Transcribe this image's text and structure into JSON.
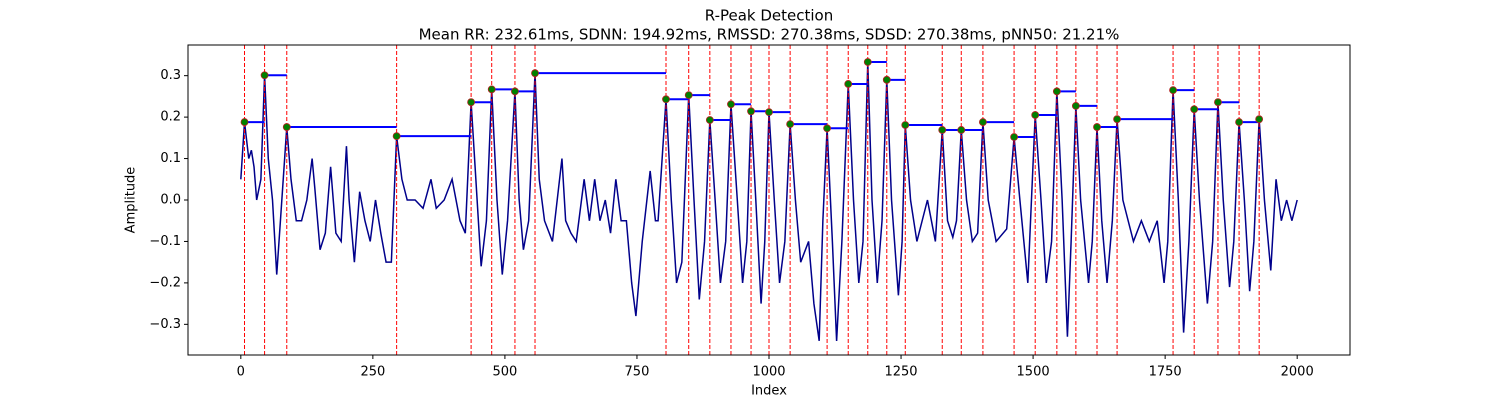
{
  "chart_data": {
    "type": "line",
    "title": "R-Peak Detection",
    "subtitle": "Mean RR: 232.61ms, SDNN: 194.92ms, RMSSD: 270.38ms, SDSD: 270.38ms, pNN50: 21.21%",
    "xlabel": "Index",
    "ylabel": "Amplitude",
    "xlim": [
      -100,
      2100
    ],
    "ylim": [
      -0.374,
      0.374
    ],
    "xticks": [
      0,
      250,
      500,
      750,
      1000,
      1250,
      1500,
      1750,
      2000
    ],
    "yticks": [
      {
        "value": -0.3,
        "label": "−0.3"
      },
      {
        "value": -0.2,
        "label": "−0.2"
      },
      {
        "value": -0.1,
        "label": "−0.1"
      },
      {
        "value": 0,
        "label": "0.0"
      },
      0.1,
      0.2,
      0.3
    ],
    "grid": false,
    "series": [
      {
        "color": "#00008b",
        "x": [
          0,
          7,
          15,
          20,
          25,
          30,
          38,
          45,
          52,
          60,
          68,
          75,
          87,
          95,
          105,
          115,
          125,
          135,
          140,
          150,
          160,
          170,
          180,
          190,
          200,
          205,
          215,
          225,
          235,
          245,
          255,
          265,
          275,
          285,
          295,
          305,
          315,
          330,
          345,
          360,
          370,
          385,
          400,
          415,
          425,
          436,
          445,
          455,
          465,
          475,
          485,
          495,
          505,
          519,
          527,
          535,
          545,
          557,
          565,
          575,
          590,
          608,
          615,
          625,
          635,
          650,
          660,
          670,
          680,
          690,
          700,
          710,
          720,
          730,
          740,
          748,
          760,
          775,
          785,
          790,
          805,
          815,
          825,
          835,
          848,
          858,
          868,
          878,
          888,
          898,
          908,
          918,
          928,
          940,
          950,
          958,
          966,
          975,
          985,
          992,
          1000,
          1010,
          1020,
          1030,
          1040,
          1050,
          1060,
          1075,
          1085,
          1095,
          1102,
          1110,
          1120,
          1128,
          1138,
          1150,
          1160,
          1170,
          1178,
          1187,
          1195,
          1205,
          1214,
          1223,
          1232,
          1245,
          1252,
          1258,
          1268,
          1280,
          1300,
          1315,
          1328,
          1338,
          1348,
          1355,
          1364,
          1374,
          1385,
          1395,
          1405,
          1415,
          1430,
          1450,
          1464,
          1475,
          1490,
          1504,
          1515,
          1525,
          1535,
          1545,
          1555,
          1565,
          1572,
          1581,
          1590,
          1605,
          1612,
          1621,
          1630,
          1640,
          1650,
          1659,
          1670,
          1690,
          1705,
          1720,
          1735,
          1748,
          1755,
          1765,
          1775,
          1785,
          1795,
          1805,
          1815,
          1830,
          1840,
          1850,
          1860,
          1872,
          1880,
          1890,
          1900,
          1910,
          1918,
          1928,
          1938,
          1950,
          1960,
          1970,
          1980,
          1990,
          2000
        ],
        "values": [
          0.05,
          0.188,
          0.1,
          0.12,
          0.08,
          0.0,
          0.05,
          0.301,
          0.1,
          0.0,
          -0.18,
          -0.05,
          0.176,
          0.05,
          -0.05,
          -0.05,
          0.0,
          0.1,
          0.03,
          -0.12,
          -0.08,
          0.08,
          -0.08,
          -0.1,
          0.13,
          0.0,
          -0.15,
          0.02,
          -0.05,
          -0.1,
          0.0,
          -0.08,
          -0.15,
          -0.15,
          0.154,
          0.05,
          0.0,
          0.0,
          -0.02,
          0.05,
          -0.02,
          0.0,
          0.05,
          -0.05,
          -0.08,
          0.236,
          0.05,
          -0.16,
          -0.05,
          0.267,
          0.0,
          -0.18,
          -0.05,
          0.262,
          0.0,
          -0.12,
          -0.05,
          0.306,
          0.05,
          -0.05,
          -0.1,
          0.1,
          -0.05,
          -0.08,
          -0.1,
          0.05,
          -0.05,
          0.05,
          -0.05,
          0.0,
          -0.08,
          0.05,
          -0.05,
          -0.05,
          -0.2,
          -0.28,
          -0.1,
          0.07,
          -0.05,
          -0.05,
          0.243,
          0.0,
          -0.2,
          -0.15,
          0.253,
          0.0,
          -0.24,
          -0.1,
          0.193,
          0.0,
          -0.2,
          -0.1,
          0.231,
          0.0,
          -0.2,
          -0.1,
          0.214,
          0.0,
          -0.25,
          -0.1,
          0.212,
          0.0,
          -0.2,
          -0.1,
          0.183,
          0.0,
          -0.15,
          -0.1,
          -0.25,
          -0.34,
          -0.05,
          0.173,
          -0.1,
          -0.34,
          -0.1,
          0.28,
          0.0,
          -0.2,
          -0.1,
          0.333,
          0.0,
          -0.2,
          -0.05,
          0.29,
          0.0,
          -0.23,
          -0.1,
          0.181,
          0.0,
          -0.1,
          0.0,
          -0.1,
          0.169,
          -0.05,
          -0.09,
          -0.05,
          0.169,
          0.0,
          -0.1,
          -0.08,
          0.188,
          0.0,
          -0.1,
          -0.07,
          0.152,
          0.0,
          -0.2,
          0.205,
          0.0,
          -0.2,
          -0.1,
          0.262,
          0.0,
          -0.33,
          -0.1,
          0.227,
          0.0,
          -0.2,
          -0.1,
          0.176,
          -0.05,
          -0.2,
          -0.05,
          0.195,
          0.0,
          -0.1,
          -0.05,
          -0.1,
          -0.05,
          -0.2,
          -0.1,
          0.265,
          0.0,
          -0.32,
          -0.1,
          0.219,
          0.0,
          -0.25,
          -0.1,
          0.236,
          0.0,
          -0.21,
          -0.1,
          0.188,
          0.0,
          -0.22,
          -0.1,
          0.195,
          0.0,
          -0.17,
          0.05,
          -0.05,
          0.0,
          -0.05,
          0.0
        ]
      }
    ],
    "peaks": {
      "color": "green",
      "edge_color": "#b22222",
      "line_color": "red",
      "interval_color": "blue",
      "x": [
        7,
        45,
        87,
        295,
        436,
        475,
        519,
        557,
        805,
        848,
        888,
        928,
        966,
        1000,
        1040,
        1110,
        1150,
        1187,
        1223,
        1258,
        1328,
        1364,
        1405,
        1464,
        1504,
        1545,
        1581,
        1621,
        1659,
        1765,
        1805,
        1850,
        1890,
        1928
      ],
      "values": [
        0.188,
        0.301,
        0.176,
        0.154,
        0.236,
        0.267,
        0.262,
        0.306,
        0.243,
        0.253,
        0.193,
        0.231,
        0.214,
        0.212,
        0.183,
        0.173,
        0.28,
        0.333,
        0.29,
        0.181,
        0.169,
        0.169,
        0.188,
        0.152,
        0.205,
        0.262,
        0.227,
        0.176,
        0.195,
        0.265,
        0.219,
        0.236,
        0.188,
        0.195
      ]
    }
  }
}
